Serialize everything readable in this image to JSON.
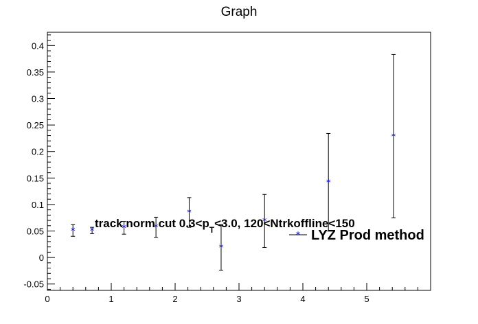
{
  "chart_data": {
    "type": "scatter",
    "title": "Graph",
    "xlabel": "",
    "ylabel": "",
    "xlim": [
      0,
      6.0
    ],
    "ylim": [
      -0.062,
      0.425
    ],
    "x_ticks": [
      0,
      1,
      2,
      3,
      4,
      5
    ],
    "x_tick_labels": [
      "0",
      "1",
      "2",
      "3",
      "4",
      "5"
    ],
    "y_ticks": [
      -0.05,
      0,
      0.05,
      0.1,
      0.15,
      0.2,
      0.25,
      0.3,
      0.35,
      0.4
    ],
    "y_tick_labels": [
      "-0.05",
      "0",
      "0.05",
      "0.1",
      "0.15",
      "0.2",
      "0.25",
      "0.3",
      "0.35",
      "0.4"
    ],
    "grid": false,
    "marker_color": "#0000cc",
    "series": [
      {
        "name": "LYZ Prod method",
        "points": [
          {
            "x": 0.4,
            "y": 0.051,
            "err": 0.011
          },
          {
            "x": 0.7,
            "y": 0.051,
            "err": 0.006
          },
          {
            "x": 1.2,
            "y": 0.056,
            "err": 0.012
          },
          {
            "x": 1.7,
            "y": 0.057,
            "err": 0.019
          },
          {
            "x": 2.22,
            "y": 0.085,
            "err": 0.028
          },
          {
            "x": 2.72,
            "y": 0.019,
            "err": 0.043
          },
          {
            "x": 3.4,
            "y": 0.069,
            "err": 0.05
          },
          {
            "x": 4.4,
            "y": 0.142,
            "err": 0.092
          },
          {
            "x": 5.42,
            "y": 0.229,
            "err": 0.154
          }
        ]
      }
    ],
    "annotation": {
      "main": "track norm cut 0.3<p",
      "sub": "T",
      "rest": "<3.0, 120<Ntrkoffline<150"
    },
    "legend": {
      "label": "LYZ Prod method",
      "position": "right"
    }
  }
}
